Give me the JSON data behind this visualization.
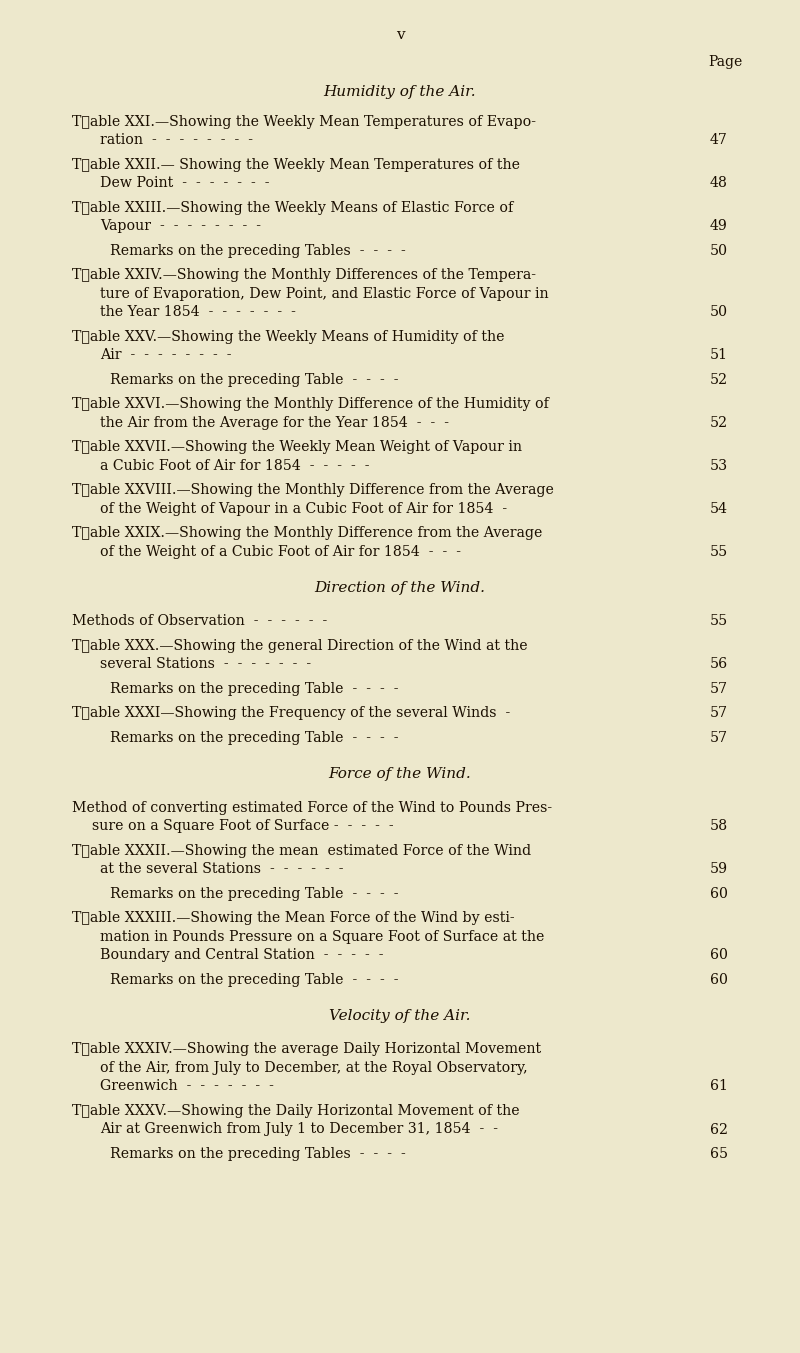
{
  "background_color": "#ede8cc",
  "page_number": "v",
  "page_label": "Page",
  "sections": {
    "humidity": "Humidity of the Air.",
    "direction": "Direction of the Wind.",
    "force": "Force of the Wind.",
    "velocity": "Velocity of the Air."
  },
  "entries": [
    {
      "type": "table",
      "lines": [
        "T\u0000able XXI.—Showing the Weekly Mean Temperatures of Evapo-",
        "ration  -  -  -  -  -  -  -  -"
      ],
      "page": "47"
    },
    {
      "type": "table",
      "lines": [
        "T\u0000able XXII.— Showing the Weekly Mean Temperatures of the",
        "Dew Point  -  -  -  -  -  -  -"
      ],
      "page": "48"
    },
    {
      "type": "table",
      "lines": [
        "T\u0000able XXIII.—Showing the Weekly Means of Elastic Force of",
        "Vapour  -  -  -  -  -  -  -  -"
      ],
      "page": "49"
    },
    {
      "type": "remark",
      "lines": [
        "Remarks on the preceding Tables  -  -  -  -"
      ],
      "page": "50"
    },
    {
      "type": "table",
      "lines": [
        "T\u0000able XXIV.—Showing the Monthly Differences of the Tempera-",
        "ture of Evaporation, Dew Point, and Elastic Force of Vapour in",
        "the Year 1854  -  -  -  -  -  -  -"
      ],
      "page": "50"
    },
    {
      "type": "table",
      "lines": [
        "T\u0000able XXV.—Showing the Weekly Means of Humidity of the",
        "Air  -  -  -  -  -  -  -  -"
      ],
      "page": "51"
    },
    {
      "type": "remark",
      "lines": [
        "Remarks on the preceding Table  -  -  -  -"
      ],
      "page": "52"
    },
    {
      "type": "table",
      "lines": [
        "T\u0000able XXVI.—Showing the Monthly Difference of the Humidity of",
        "the Air from the Average for the Year 1854  -  -  -"
      ],
      "page": "52"
    },
    {
      "type": "table",
      "lines": [
        "T\u0000able XXVII.—Showing the Weekly Mean Weight of Vapour in",
        "a Cubic Foot of Air for 1854  -  -  -  -  -"
      ],
      "page": "53"
    },
    {
      "type": "table",
      "lines": [
        "T\u0000able XXVIII.—Showing the Monthly Difference from the Average",
        "of the Weight of Vapour in a Cubic Foot of Air for 1854  -"
      ],
      "page": "54"
    },
    {
      "type": "table",
      "lines": [
        "T\u0000able XXIX.—Showing the Monthly Difference from the Average",
        "of the Weight of a Cubic Foot of Air for 1854  -  -  -"
      ],
      "page": "55"
    },
    {
      "type": "section",
      "key": "direction"
    },
    {
      "type": "plain",
      "lines": [
        "Methods of Observation  -  -  -  -  -  -"
      ],
      "page": "55"
    },
    {
      "type": "table",
      "lines": [
        "T\u0000able XXX.—Showing the general Direction of the Wind at the",
        "several Stations  -  -  -  -  -  -  -"
      ],
      "page": "56"
    },
    {
      "type": "remark",
      "lines": [
        "Remarks on the preceding Table  -  -  -  -"
      ],
      "page": "57"
    },
    {
      "type": "table",
      "lines": [
        "T\u0000able XXXI—Showing the Frequency of the several Winds  -"
      ],
      "page": "57"
    },
    {
      "type": "remark",
      "lines": [
        "Remarks on the preceding Table  -  -  -  -"
      ],
      "page": "57"
    },
    {
      "type": "section",
      "key": "force"
    },
    {
      "type": "plain",
      "lines": [
        "Method of converting estimated Force of the Wind to Pounds Pres-",
        "sure on a Square Foot of Surface -  -  -  -  -"
      ],
      "page": "58"
    },
    {
      "type": "table",
      "lines": [
        "T\u0000able XXXII.—Showing the mean  estimated Force of the Wind",
        "at the several Stations  -  -  -  -  -  -"
      ],
      "page": "59"
    },
    {
      "type": "remark",
      "lines": [
        "Remarks on the preceding Table  -  -  -  -"
      ],
      "page": "60"
    },
    {
      "type": "table",
      "lines": [
        "T\u0000able XXXIII.—Showing the Mean Force of the Wind by esti-",
        "mation in Pounds Pressure on a Square Foot of Surface at the",
        "Boundary and Central Station  -  -  -  -  -"
      ],
      "page": "60"
    },
    {
      "type": "remark",
      "lines": [
        "Remarks on the preceding Table  -  -  -  -"
      ],
      "page": "60"
    },
    {
      "type": "section",
      "key": "velocity"
    },
    {
      "type": "table",
      "lines": [
        "T\u0000able XXXIV.—Showing the average Daily Horizontal Movement",
        "of the Air, from July to December, at the Royal Observatory,",
        "Greenwich  -  -  -  -  -  -  -"
      ],
      "page": "61"
    },
    {
      "type": "table",
      "lines": [
        "T\u0000able XXXV.—Showing the Daily Horizontal Movement of the",
        "Air at Greenwich from July 1 to December 31, 1854  -  -"
      ],
      "page": "62"
    },
    {
      "type": "remark",
      "lines": [
        "Remarks on the preceding Tables  -  -  -  -"
      ],
      "page": "65"
    }
  ]
}
